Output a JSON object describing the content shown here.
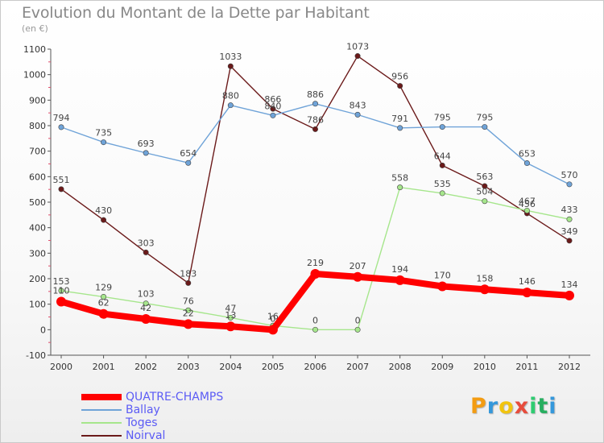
{
  "header": {
    "title": "Evolution du Montant de la Dette par Habitant",
    "subtitle": "(en €)"
  },
  "logo": {
    "text": "Proxiti",
    "letters": [
      "P",
      "r",
      "o",
      "x",
      "i",
      "t",
      "i"
    ]
  },
  "chart_data": {
    "type": "line",
    "x": [
      2000,
      2001,
      2002,
      2003,
      2004,
      2005,
      2006,
      2007,
      2008,
      2009,
      2010,
      2011,
      2012
    ],
    "ylim": [
      -100,
      1100
    ],
    "yticks": [
      -100,
      0,
      100,
      200,
      300,
      400,
      500,
      600,
      700,
      800,
      900,
      1000,
      1100
    ],
    "grid": false,
    "legend_position": "bottom-left",
    "series": [
      {
        "name": "Noirval",
        "color": "#6b1a1a",
        "values": [
          551,
          430,
          303,
          183,
          1033,
          866,
          786,
          1073,
          956,
          644,
          563,
          456,
          349
        ]
      },
      {
        "name": "Ballay",
        "color": "#6fa3d8",
        "values": [
          794,
          735,
          693,
          654,
          880,
          840,
          886,
          843,
          791,
          795,
          795,
          653,
          570
        ]
      },
      {
        "name": "Toges",
        "color": "#a6e68c",
        "values": [
          153,
          129,
          103,
          76,
          47,
          16,
          0,
          0,
          558,
          535,
          504,
          467,
          433
        ]
      },
      {
        "name": "QUATRE-CHAMPS",
        "color": "#ff0000",
        "values": [
          110,
          62,
          42,
          22,
          13,
          0,
          219,
          207,
          194,
          170,
          158,
          146,
          134
        ]
      }
    ]
  },
  "legend": [
    {
      "name": "QUATRE-CHAMPS",
      "color": "#ff0000"
    },
    {
      "name": "Ballay",
      "color": "#6fa3d8"
    },
    {
      "name": "Toges",
      "color": "#a6e68c"
    },
    {
      "name": "Noirval",
      "color": "#6b1a1a"
    }
  ],
  "colors": {
    "logo": [
      "#f39c12",
      "#3498db",
      "#f1c40f",
      "#e74c3c",
      "#2ecc71",
      "#27ae60",
      "#3498db"
    ]
  }
}
